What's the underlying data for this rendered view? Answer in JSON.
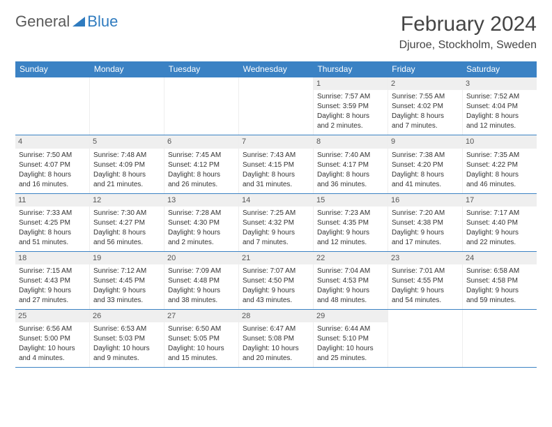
{
  "logo": {
    "part1": "General",
    "part2": "Blue"
  },
  "title": "February 2024",
  "location": "Djuroe, Stockholm, Sweden",
  "header_bg": "#3b82c4",
  "day_names": [
    "Sunday",
    "Monday",
    "Tuesday",
    "Wednesday",
    "Thursday",
    "Friday",
    "Saturday"
  ],
  "weeks": [
    [
      null,
      null,
      null,
      null,
      {
        "n": "1",
        "sr": "Sunrise: 7:57 AM",
        "ss": "Sunset: 3:59 PM",
        "d1": "Daylight: 8 hours",
        "d2": "and 2 minutes."
      },
      {
        "n": "2",
        "sr": "Sunrise: 7:55 AM",
        "ss": "Sunset: 4:02 PM",
        "d1": "Daylight: 8 hours",
        "d2": "and 7 minutes."
      },
      {
        "n": "3",
        "sr": "Sunrise: 7:52 AM",
        "ss": "Sunset: 4:04 PM",
        "d1": "Daylight: 8 hours",
        "d2": "and 12 minutes."
      }
    ],
    [
      {
        "n": "4",
        "sr": "Sunrise: 7:50 AM",
        "ss": "Sunset: 4:07 PM",
        "d1": "Daylight: 8 hours",
        "d2": "and 16 minutes."
      },
      {
        "n": "5",
        "sr": "Sunrise: 7:48 AM",
        "ss": "Sunset: 4:09 PM",
        "d1": "Daylight: 8 hours",
        "d2": "and 21 minutes."
      },
      {
        "n": "6",
        "sr": "Sunrise: 7:45 AM",
        "ss": "Sunset: 4:12 PM",
        "d1": "Daylight: 8 hours",
        "d2": "and 26 minutes."
      },
      {
        "n": "7",
        "sr": "Sunrise: 7:43 AM",
        "ss": "Sunset: 4:15 PM",
        "d1": "Daylight: 8 hours",
        "d2": "and 31 minutes."
      },
      {
        "n": "8",
        "sr": "Sunrise: 7:40 AM",
        "ss": "Sunset: 4:17 PM",
        "d1": "Daylight: 8 hours",
        "d2": "and 36 minutes."
      },
      {
        "n": "9",
        "sr": "Sunrise: 7:38 AM",
        "ss": "Sunset: 4:20 PM",
        "d1": "Daylight: 8 hours",
        "d2": "and 41 minutes."
      },
      {
        "n": "10",
        "sr": "Sunrise: 7:35 AM",
        "ss": "Sunset: 4:22 PM",
        "d1": "Daylight: 8 hours",
        "d2": "and 46 minutes."
      }
    ],
    [
      {
        "n": "11",
        "sr": "Sunrise: 7:33 AM",
        "ss": "Sunset: 4:25 PM",
        "d1": "Daylight: 8 hours",
        "d2": "and 51 minutes."
      },
      {
        "n": "12",
        "sr": "Sunrise: 7:30 AM",
        "ss": "Sunset: 4:27 PM",
        "d1": "Daylight: 8 hours",
        "d2": "and 56 minutes."
      },
      {
        "n": "13",
        "sr": "Sunrise: 7:28 AM",
        "ss": "Sunset: 4:30 PM",
        "d1": "Daylight: 9 hours",
        "d2": "and 2 minutes."
      },
      {
        "n": "14",
        "sr": "Sunrise: 7:25 AM",
        "ss": "Sunset: 4:32 PM",
        "d1": "Daylight: 9 hours",
        "d2": "and 7 minutes."
      },
      {
        "n": "15",
        "sr": "Sunrise: 7:23 AM",
        "ss": "Sunset: 4:35 PM",
        "d1": "Daylight: 9 hours",
        "d2": "and 12 minutes."
      },
      {
        "n": "16",
        "sr": "Sunrise: 7:20 AM",
        "ss": "Sunset: 4:38 PM",
        "d1": "Daylight: 9 hours",
        "d2": "and 17 minutes."
      },
      {
        "n": "17",
        "sr": "Sunrise: 7:17 AM",
        "ss": "Sunset: 4:40 PM",
        "d1": "Daylight: 9 hours",
        "d2": "and 22 minutes."
      }
    ],
    [
      {
        "n": "18",
        "sr": "Sunrise: 7:15 AM",
        "ss": "Sunset: 4:43 PM",
        "d1": "Daylight: 9 hours",
        "d2": "and 27 minutes."
      },
      {
        "n": "19",
        "sr": "Sunrise: 7:12 AM",
        "ss": "Sunset: 4:45 PM",
        "d1": "Daylight: 9 hours",
        "d2": "and 33 minutes."
      },
      {
        "n": "20",
        "sr": "Sunrise: 7:09 AM",
        "ss": "Sunset: 4:48 PM",
        "d1": "Daylight: 9 hours",
        "d2": "and 38 minutes."
      },
      {
        "n": "21",
        "sr": "Sunrise: 7:07 AM",
        "ss": "Sunset: 4:50 PM",
        "d1": "Daylight: 9 hours",
        "d2": "and 43 minutes."
      },
      {
        "n": "22",
        "sr": "Sunrise: 7:04 AM",
        "ss": "Sunset: 4:53 PM",
        "d1": "Daylight: 9 hours",
        "d2": "and 48 minutes."
      },
      {
        "n": "23",
        "sr": "Sunrise: 7:01 AM",
        "ss": "Sunset: 4:55 PM",
        "d1": "Daylight: 9 hours",
        "d2": "and 54 minutes."
      },
      {
        "n": "24",
        "sr": "Sunrise: 6:58 AM",
        "ss": "Sunset: 4:58 PM",
        "d1": "Daylight: 9 hours",
        "d2": "and 59 minutes."
      }
    ],
    [
      {
        "n": "25",
        "sr": "Sunrise: 6:56 AM",
        "ss": "Sunset: 5:00 PM",
        "d1": "Daylight: 10 hours",
        "d2": "and 4 minutes."
      },
      {
        "n": "26",
        "sr": "Sunrise: 6:53 AM",
        "ss": "Sunset: 5:03 PM",
        "d1": "Daylight: 10 hours",
        "d2": "and 9 minutes."
      },
      {
        "n": "27",
        "sr": "Sunrise: 6:50 AM",
        "ss": "Sunset: 5:05 PM",
        "d1": "Daylight: 10 hours",
        "d2": "and 15 minutes."
      },
      {
        "n": "28",
        "sr": "Sunrise: 6:47 AM",
        "ss": "Sunset: 5:08 PM",
        "d1": "Daylight: 10 hours",
        "d2": "and 20 minutes."
      },
      {
        "n": "29",
        "sr": "Sunrise: 6:44 AM",
        "ss": "Sunset: 5:10 PM",
        "d1": "Daylight: 10 hours",
        "d2": "and 25 minutes."
      },
      null,
      null
    ]
  ]
}
